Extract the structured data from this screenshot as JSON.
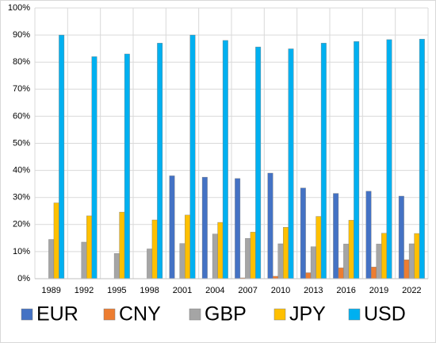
{
  "chart_data": {
    "type": "bar",
    "categories": [
      "1989",
      "1992",
      "1995",
      "1998",
      "2001",
      "2004",
      "2007",
      "2010",
      "2013",
      "2016",
      "2019",
      "2022"
    ],
    "series": [
      {
        "name": "EUR",
        "color": "#4472c4",
        "values": [
          null,
          null,
          null,
          null,
          38,
          37.5,
          37,
          39,
          33.5,
          31.5,
          32.3,
          30.5
        ]
      },
      {
        "name": "CNY",
        "color": "#ed7d31",
        "values": [
          null,
          null,
          null,
          null,
          null,
          null,
          0.3,
          0.9,
          2.2,
          4,
          4.3,
          7
        ]
      },
      {
        "name": "GBP",
        "color": "#a5a5a5",
        "values": [
          14.5,
          13.5,
          9.3,
          11,
          13,
          16.5,
          14.9,
          12.9,
          11.8,
          12.8,
          12.8,
          12.9
        ]
      },
      {
        "name": "JPY",
        "color": "#ffc000",
        "values": [
          28,
          23.2,
          24.6,
          21.7,
          23.5,
          20.8,
          17.2,
          19,
          23,
          21.6,
          16.8,
          16.7
        ]
      },
      {
        "name": "USD",
        "color": "#00b0f0",
        "values": [
          90,
          82,
          83,
          87,
          90,
          88,
          85.6,
          84.9,
          87,
          87.6,
          88.3,
          88.5
        ]
      }
    ],
    "ylim": [
      0,
      100
    ],
    "yticks": [
      {
        "value": 0,
        "label": "0%"
      },
      {
        "value": 10,
        "label": "10%"
      },
      {
        "value": 20,
        "label": "20%"
      },
      {
        "value": 30,
        "label": "30%"
      },
      {
        "value": 40,
        "label": "40%"
      },
      {
        "value": 50,
        "label": "50%"
      },
      {
        "value": 60,
        "label": "60%"
      },
      {
        "value": 70,
        "label": "70%"
      },
      {
        "value": 80,
        "label": "80%"
      },
      {
        "value": 90,
        "label": "90%"
      },
      {
        "value": 100,
        "label": "100%"
      }
    ],
    "grid": true,
    "legend": "bottom"
  }
}
